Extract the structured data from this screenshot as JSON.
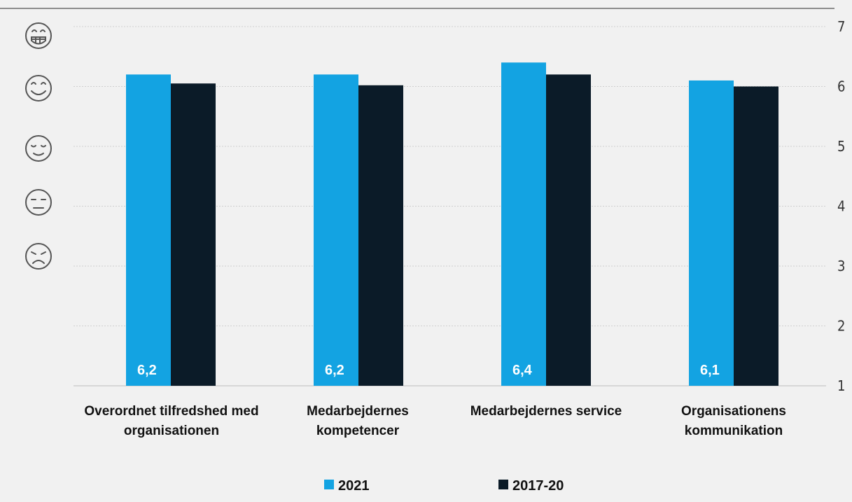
{
  "chart_data": {
    "type": "bar",
    "categories": [
      [
        "Overordnet tilfredshed med",
        "organisationen"
      ],
      [
        "Medarbejdernes",
        "kompetencer"
      ],
      [
        "Medarbejdernes service"
      ],
      [
        "Organisationens",
        "kommunikation"
      ]
    ],
    "series": [
      {
        "name": "2021",
        "values": [
          6.2,
          6.2,
          6.4,
          6.1
        ],
        "color": "#13a3e2",
        "data_labels": [
          "6,2",
          "6,2",
          "6,4",
          "6,1"
        ]
      },
      {
        "name": "2017-20",
        "values": [
          6.05,
          6.02,
          6.2,
          6.0
        ],
        "color": "#0b1b28"
      }
    ],
    "ylim": [
      1,
      7
    ],
    "yticks": [
      "1",
      "2",
      "3",
      "4",
      "5",
      "6",
      "7"
    ],
    "y_axis_position": "right",
    "grid": true,
    "legend_position": "bottom",
    "left_icons": [
      "grinning-face-icon",
      "smiling-face-icon",
      "content-face-icon",
      "neutral-face-icon",
      "sad-face-icon"
    ]
  }
}
